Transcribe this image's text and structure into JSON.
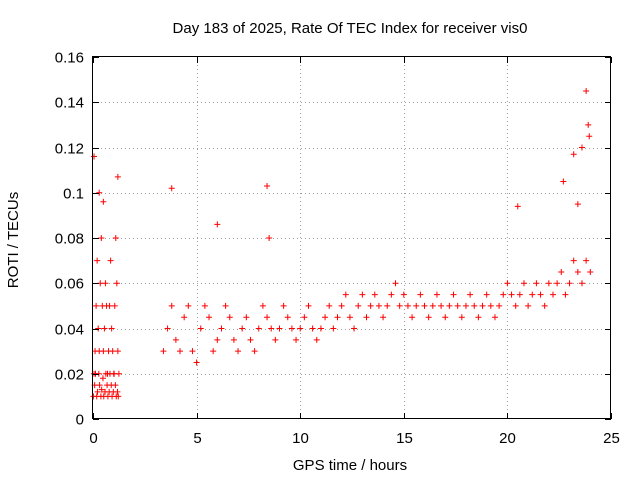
{
  "chart_data": {
    "type": "scatter",
    "title": "Day 183 of 2025, Rate Of TEC Index for receiver vis0",
    "xlabel": "GPS time / hours",
    "ylabel": "ROTI / TECUs",
    "xlim": [
      0,
      25
    ],
    "ylim": [
      0,
      0.16
    ],
    "xticks": [
      "0",
      "5",
      "10",
      "15",
      "20",
      "25"
    ],
    "yticks": [
      "0",
      "0.02",
      "0.04",
      "0.06",
      "0.08",
      "0.1",
      "0.12",
      "0.14",
      "0.16"
    ],
    "grid": true,
    "marker": "+",
    "color": "#ff0000",
    "series": [
      {
        "x": [
          0.05,
          0.1,
          0.15,
          0.2,
          0.25,
          0.3,
          0.35,
          0.4,
          0.45,
          0.5,
          0.55,
          0.6,
          0.65,
          0.7,
          0.75,
          0.8,
          0.85,
          0.9,
          0.95,
          1.0,
          1.05,
          1.1,
          1.15,
          1.2,
          1.25,
          0.02,
          0.08,
          0.12,
          0.18,
          0.22,
          0.28,
          0.32,
          0.38,
          0.42,
          0.48,
          0.52,
          0.58,
          0.62,
          0.68,
          0.72,
          0.78,
          0.82,
          0.88,
          0.92,
          0.98,
          1.02,
          1.08,
          1.12,
          1.18,
          1.22,
          3.4,
          3.6,
          3.8,
          4.0,
          4.2,
          4.4,
          4.6,
          4.8,
          5.0,
          5.2,
          5.4,
          5.6,
          5.8,
          6.0,
          6.2,
          6.4,
          6.6,
          6.8,
          7.0,
          7.2,
          7.4,
          7.6,
          7.8,
          8.0,
          8.2,
          8.4,
          8.6,
          8.8,
          9.0,
          9.2,
          9.4,
          9.6,
          9.8,
          10.0,
          10.2,
          10.4,
          10.6,
          10.8,
          11.0,
          11.2,
          11.4,
          11.6,
          11.8,
          12.0,
          12.2,
          12.4,
          12.6,
          12.8,
          13.0,
          13.2,
          13.4,
          13.6,
          13.8,
          14.0,
          14.2,
          14.4,
          14.6,
          14.8,
          15.0,
          15.2,
          15.4,
          15.6,
          15.8,
          16.0,
          16.2,
          16.4,
          16.6,
          16.8,
          17.0,
          17.2,
          17.4,
          17.6,
          17.8,
          18.0,
          18.2,
          18.4,
          18.6,
          18.8,
          19.0,
          19.2,
          19.4,
          19.6,
          19.8,
          20.0,
          20.2,
          20.4,
          20.6,
          20.8,
          21.0,
          21.2,
          21.4,
          21.6,
          21.8,
          22.0,
          22.2,
          22.4,
          22.6,
          22.8,
          23.0,
          23.2,
          23.4,
          23.6,
          23.8,
          24.0,
          0.05,
          0.3,
          0.5,
          1.2,
          3.8,
          6.0,
          8.4,
          8.5,
          20.5,
          22.7,
          23.2,
          23.4,
          23.6,
          23.8,
          23.9,
          23.95
        ],
        "y": [
          0.02,
          0.03,
          0.05,
          0.07,
          0.04,
          0.03,
          0.06,
          0.08,
          0.05,
          0.03,
          0.04,
          0.06,
          0.05,
          0.02,
          0.03,
          0.05,
          0.07,
          0.04,
          0.03,
          0.02,
          0.05,
          0.08,
          0.06,
          0.03,
          0.02,
          0.01,
          0.015,
          0.02,
          0.01,
          0.012,
          0.02,
          0.015,
          0.01,
          0.013,
          0.018,
          0.01,
          0.012,
          0.02,
          0.015,
          0.01,
          0.012,
          0.02,
          0.015,
          0.01,
          0.012,
          0.02,
          0.015,
          0.01,
          0.012,
          0.01,
          0.03,
          0.04,
          0.05,
          0.035,
          0.03,
          0.045,
          0.05,
          0.03,
          0.025,
          0.04,
          0.05,
          0.045,
          0.03,
          0.035,
          0.04,
          0.05,
          0.045,
          0.035,
          0.03,
          0.04,
          0.045,
          0.035,
          0.03,
          0.04,
          0.05,
          0.045,
          0.04,
          0.035,
          0.04,
          0.05,
          0.045,
          0.04,
          0.035,
          0.04,
          0.045,
          0.05,
          0.04,
          0.035,
          0.04,
          0.045,
          0.05,
          0.04,
          0.045,
          0.05,
          0.055,
          0.045,
          0.04,
          0.05,
          0.055,
          0.045,
          0.05,
          0.055,
          0.05,
          0.045,
          0.05,
          0.055,
          0.06,
          0.05,
          0.055,
          0.05,
          0.045,
          0.05,
          0.055,
          0.05,
          0.045,
          0.05,
          0.055,
          0.05,
          0.045,
          0.05,
          0.055,
          0.05,
          0.045,
          0.05,
          0.055,
          0.05,
          0.045,
          0.05,
          0.055,
          0.05,
          0.045,
          0.05,
          0.055,
          0.06,
          0.055,
          0.05,
          0.055,
          0.06,
          0.05,
          0.055,
          0.06,
          0.055,
          0.05,
          0.06,
          0.055,
          0.06,
          0.065,
          0.055,
          0.06,
          0.07,
          0.065,
          0.06,
          0.07,
          0.065,
          0.116,
          0.1,
          0.096,
          0.107,
          0.102,
          0.086,
          0.103,
          0.08,
          0.094,
          0.105,
          0.117,
          0.095,
          0.12,
          0.145,
          0.13,
          0.125
        ]
      }
    ]
  }
}
